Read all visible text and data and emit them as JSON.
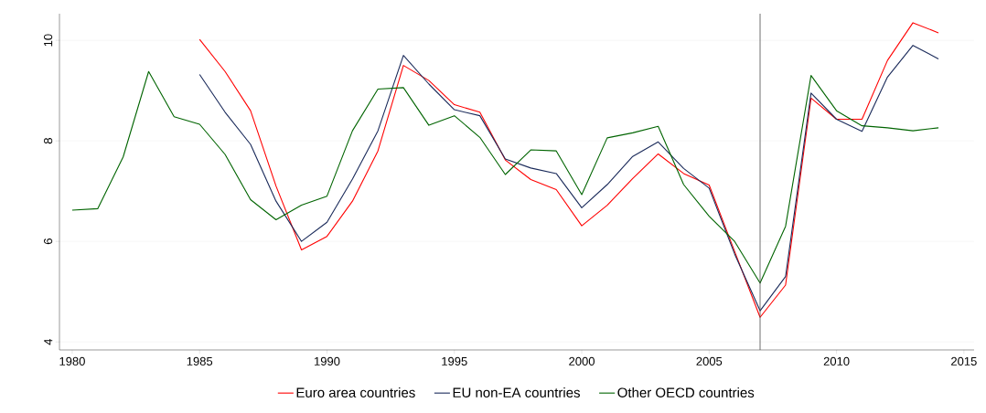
{
  "chart_data": {
    "type": "line",
    "x": [
      1980,
      1981,
      1982,
      1983,
      1984,
      1985,
      1986,
      1987,
      1988,
      1989,
      1990,
      1991,
      1992,
      1993,
      1994,
      1995,
      1996,
      1997,
      1998,
      1999,
      2000,
      2001,
      2002,
      2003,
      2004,
      2005,
      2006,
      2007,
      2008,
      2009,
      2010,
      2011,
      2012,
      2013,
      2014
    ],
    "series": [
      {
        "name": "Euro area countries",
        "color": "#ff0000",
        "values": [
          null,
          null,
          null,
          null,
          null,
          10.02,
          9.38,
          8.6,
          7.1,
          5.83,
          6.1,
          6.8,
          7.8,
          9.5,
          9.2,
          8.72,
          8.57,
          7.62,
          7.23,
          7.03,
          6.31,
          6.72,
          7.25,
          7.74,
          7.35,
          7.12,
          5.8,
          4.49,
          5.13,
          8.85,
          8.43,
          8.43,
          9.6,
          10.35,
          10.15
        ]
      },
      {
        "name": "EU non-EA countries",
        "color": "#1a2a5a",
        "values": [
          null,
          null,
          null,
          null,
          null,
          9.32,
          8.57,
          7.93,
          6.8,
          6.0,
          6.38,
          7.24,
          8.2,
          9.7,
          9.13,
          8.62,
          8.5,
          7.64,
          7.46,
          7.35,
          6.67,
          7.13,
          7.69,
          7.98,
          7.45,
          7.06,
          5.75,
          4.62,
          5.3,
          8.95,
          8.43,
          8.19,
          9.27,
          9.9,
          9.63
        ]
      },
      {
        "name": "Other OECD countries",
        "color": "#006400",
        "values": [
          6.62,
          6.65,
          7.68,
          9.38,
          8.48,
          8.33,
          7.73,
          6.83,
          6.43,
          6.72,
          6.9,
          8.2,
          9.03,
          9.06,
          8.31,
          8.5,
          8.07,
          7.33,
          7.82,
          7.8,
          6.93,
          8.06,
          8.16,
          8.29,
          7.13,
          6.5,
          6.0,
          5.17,
          6.3,
          9.3,
          8.6,
          8.3,
          8.26,
          8.2,
          8.26
        ]
      }
    ],
    "xlim": [
      1979.5,
      2015.4
    ],
    "ylim": [
      3.84,
      10.53
    ],
    "xticks": [
      1980,
      1985,
      1990,
      1995,
      2000,
      2005,
      2010,
      2015
    ],
    "yticks": [
      4,
      6,
      8,
      10
    ],
    "grid": "y",
    "legend": "bottom",
    "ref_lines": [
      {
        "axis": "x",
        "value": 2007,
        "color": "#4d4d4d"
      }
    ]
  }
}
